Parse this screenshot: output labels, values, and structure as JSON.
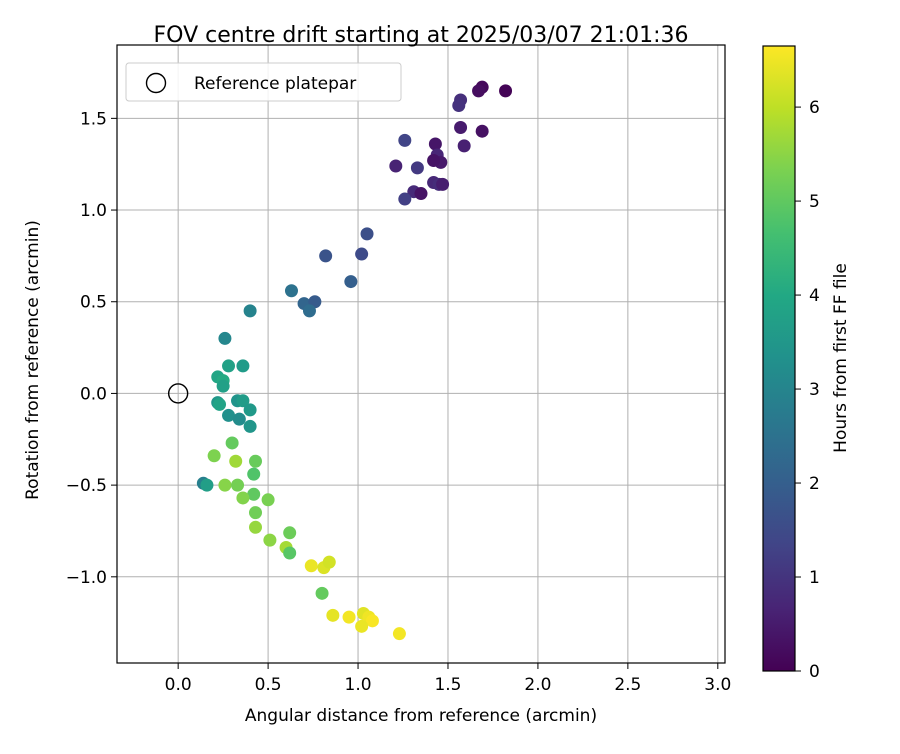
{
  "chart_data": {
    "type": "scatter",
    "title": "FOV centre drift starting at 2025/03/07 21:01:36",
    "xlabel": "Angular distance from reference (arcmin)",
    "ylabel": "Rotation from reference (arcmin)",
    "xlim": [
      -0.34,
      3.04
    ],
    "ylim": [
      -1.47,
      1.9
    ],
    "xticks": [
      0.0,
      0.5,
      1.0,
      1.5,
      2.0,
      2.5,
      3.0
    ],
    "xtick_labels": [
      "0.0",
      "0.5",
      "1.0",
      "1.5",
      "2.0",
      "2.5",
      "3.0"
    ],
    "yticks": [
      -1.0,
      -0.5,
      0.0,
      0.5,
      1.0,
      1.5
    ],
    "ytick_labels": [
      "−1.0",
      "−0.5",
      "0.0",
      "0.5",
      "1.0",
      "1.5"
    ],
    "grid": true,
    "legend": {
      "position": "top-left",
      "entries": [
        {
          "label": "Reference platepar",
          "marker": "open-circle"
        }
      ]
    },
    "reference_point": {
      "x": 0.0,
      "y": 0.0
    },
    "colorbar": {
      "label": "Hours from first FF file",
      "colormap": "viridis",
      "range": [
        0,
        6.65
      ],
      "ticks": [
        0,
        1,
        2,
        3,
        4,
        5,
        6
      ],
      "tick_labels": [
        "0",
        "1",
        "2",
        "3",
        "4",
        "5",
        "6"
      ]
    },
    "points": [
      {
        "x": 1.82,
        "y": 1.65,
        "h": 0.05
      },
      {
        "x": 1.69,
        "y": 1.67,
        "h": 0.15
      },
      {
        "x": 1.67,
        "y": 1.65,
        "h": 0.25
      },
      {
        "x": 1.69,
        "y": 1.43,
        "h": 0.3
      },
      {
        "x": 1.57,
        "y": 1.6,
        "h": 0.9
      },
      {
        "x": 1.56,
        "y": 1.57,
        "h": 0.95
      },
      {
        "x": 1.57,
        "y": 1.45,
        "h": 0.5
      },
      {
        "x": 1.59,
        "y": 1.35,
        "h": 0.6
      },
      {
        "x": 1.43,
        "y": 1.36,
        "h": 0.4
      },
      {
        "x": 1.44,
        "y": 1.3,
        "h": 0.7
      },
      {
        "x": 1.46,
        "y": 1.26,
        "h": 0.45
      },
      {
        "x": 1.42,
        "y": 1.27,
        "h": 0.35
      },
      {
        "x": 1.26,
        "y": 1.38,
        "h": 1.35
      },
      {
        "x": 1.21,
        "y": 1.24,
        "h": 0.65
      },
      {
        "x": 1.33,
        "y": 1.23,
        "h": 1.1
      },
      {
        "x": 1.42,
        "y": 1.15,
        "h": 0.75
      },
      {
        "x": 1.45,
        "y": 1.14,
        "h": 0.85
      },
      {
        "x": 1.47,
        "y": 1.14,
        "h": 0.55
      },
      {
        "x": 1.31,
        "y": 1.1,
        "h": 0.8
      },
      {
        "x": 1.35,
        "y": 1.09,
        "h": 0.35
      },
      {
        "x": 1.26,
        "y": 1.06,
        "h": 1.25
      },
      {
        "x": 1.05,
        "y": 0.87,
        "h": 1.6
      },
      {
        "x": 1.02,
        "y": 0.76,
        "h": 1.5
      },
      {
        "x": 0.82,
        "y": 0.75,
        "h": 1.7
      },
      {
        "x": 0.96,
        "y": 0.61,
        "h": 2.0
      },
      {
        "x": 0.63,
        "y": 0.56,
        "h": 2.5
      },
      {
        "x": 0.7,
        "y": 0.49,
        "h": 2.15
      },
      {
        "x": 0.76,
        "y": 0.5,
        "h": 1.9
      },
      {
        "x": 0.73,
        "y": 0.45,
        "h": 2.35
      },
      {
        "x": 0.4,
        "y": 0.45,
        "h": 2.95
      },
      {
        "x": 0.26,
        "y": 0.3,
        "h": 3.05
      },
      {
        "x": 0.28,
        "y": 0.15,
        "h": 3.8
      },
      {
        "x": 0.36,
        "y": 0.15,
        "h": 3.6
      },
      {
        "x": 0.22,
        "y": 0.09,
        "h": 3.9
      },
      {
        "x": 0.25,
        "y": 0.07,
        "h": 4.05
      },
      {
        "x": 0.25,
        "y": 0.04,
        "h": 3.75
      },
      {
        "x": 0.22,
        "y": -0.05,
        "h": 3.5
      },
      {
        "x": 0.23,
        "y": -0.06,
        "h": 3.85
      },
      {
        "x": 0.33,
        "y": -0.04,
        "h": 3.4
      },
      {
        "x": 0.36,
        "y": -0.04,
        "h": 3.65
      },
      {
        "x": 0.4,
        "y": -0.09,
        "h": 3.55
      },
      {
        "x": 0.28,
        "y": -0.12,
        "h": 3.3
      },
      {
        "x": 0.34,
        "y": -0.14,
        "h": 3.2
      },
      {
        "x": 0.4,
        "y": -0.18,
        "h": 3.45
      },
      {
        "x": 0.3,
        "y": -0.27,
        "h": 5.05
      },
      {
        "x": 0.2,
        "y": -0.34,
        "h": 5.35
      },
      {
        "x": 0.32,
        "y": -0.37,
        "h": 5.7
      },
      {
        "x": 0.43,
        "y": -0.37,
        "h": 5.1
      },
      {
        "x": 0.42,
        "y": -0.44,
        "h": 4.8
      },
      {
        "x": 0.14,
        "y": -0.49,
        "h": 2.85
      },
      {
        "x": 0.16,
        "y": -0.5,
        "h": 3.7
      },
      {
        "x": 0.26,
        "y": -0.5,
        "h": 5.45
      },
      {
        "x": 0.33,
        "y": -0.5,
        "h": 5.25
      },
      {
        "x": 0.42,
        "y": -0.55,
        "h": 5.0
      },
      {
        "x": 0.36,
        "y": -0.57,
        "h": 5.4
      },
      {
        "x": 0.5,
        "y": -0.58,
        "h": 5.3
      },
      {
        "x": 0.43,
        "y": -0.65,
        "h": 5.2
      },
      {
        "x": 0.43,
        "y": -0.73,
        "h": 5.6
      },
      {
        "x": 0.62,
        "y": -0.76,
        "h": 5.15
      },
      {
        "x": 0.51,
        "y": -0.8,
        "h": 5.5
      },
      {
        "x": 0.6,
        "y": -0.84,
        "h": 5.75
      },
      {
        "x": 0.62,
        "y": -0.87,
        "h": 4.9
      },
      {
        "x": 0.74,
        "y": -0.94,
        "h": 6.45
      },
      {
        "x": 0.81,
        "y": -0.95,
        "h": 6.3
      },
      {
        "x": 0.84,
        "y": -0.92,
        "h": 6.2
      },
      {
        "x": 0.8,
        "y": -1.09,
        "h": 5.05
      },
      {
        "x": 0.86,
        "y": -1.21,
        "h": 6.4
      },
      {
        "x": 0.95,
        "y": -1.22,
        "h": 6.55
      },
      {
        "x": 1.03,
        "y": -1.2,
        "h": 6.35
      },
      {
        "x": 1.06,
        "y": -1.22,
        "h": 6.5
      },
      {
        "x": 1.08,
        "y": -1.24,
        "h": 6.6
      },
      {
        "x": 1.02,
        "y": -1.27,
        "h": 6.45
      },
      {
        "x": 1.23,
        "y": -1.31,
        "h": 6.55
      }
    ]
  }
}
